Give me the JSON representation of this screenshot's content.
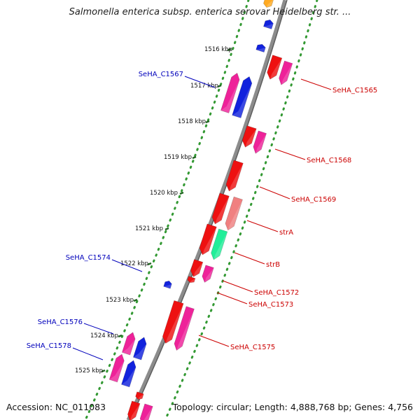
{
  "title": "Salmonella enterica subsp. enterica serovar Heidelberg str. ...",
  "accession": "Accession: NC_011083",
  "topology": "Topology: circular; Length: 4,888,768 bp; Genes: 4,756",
  "colors": {
    "backbone": "#8c8c8c",
    "forward_dots": "#339933",
    "reverse_dots": "#339933",
    "gene_red": "#ee1111",
    "gene_pink": "#ee2299",
    "gene_blue": "#1122dd",
    "gene_salmon": "#f08080",
    "gene_green": "#22ee99",
    "label_red": "#cc0000",
    "label_blue": "#0000bb"
  },
  "ticks": [
    "1516 kbp",
    "1517 kbp",
    "1518 kbp",
    "1519 kbp",
    "1520 kbp",
    "1521 kbp",
    "1522 kbp",
    "1523 kbp",
    "1524 kbp",
    "1525 kbp"
  ],
  "labels": {
    "forward": [
      "SeHA_C1565",
      "SeHA_C1568",
      "SeHA_C1569",
      "strA",
      "strB",
      "SeHA_C1572",
      "SeHA_C1573",
      "SeHA_C1575"
    ],
    "reverse": [
      "SeHA_C1567",
      "SeHA_C1574",
      "SeHA_C1576",
      "SeHA_C1578"
    ]
  }
}
